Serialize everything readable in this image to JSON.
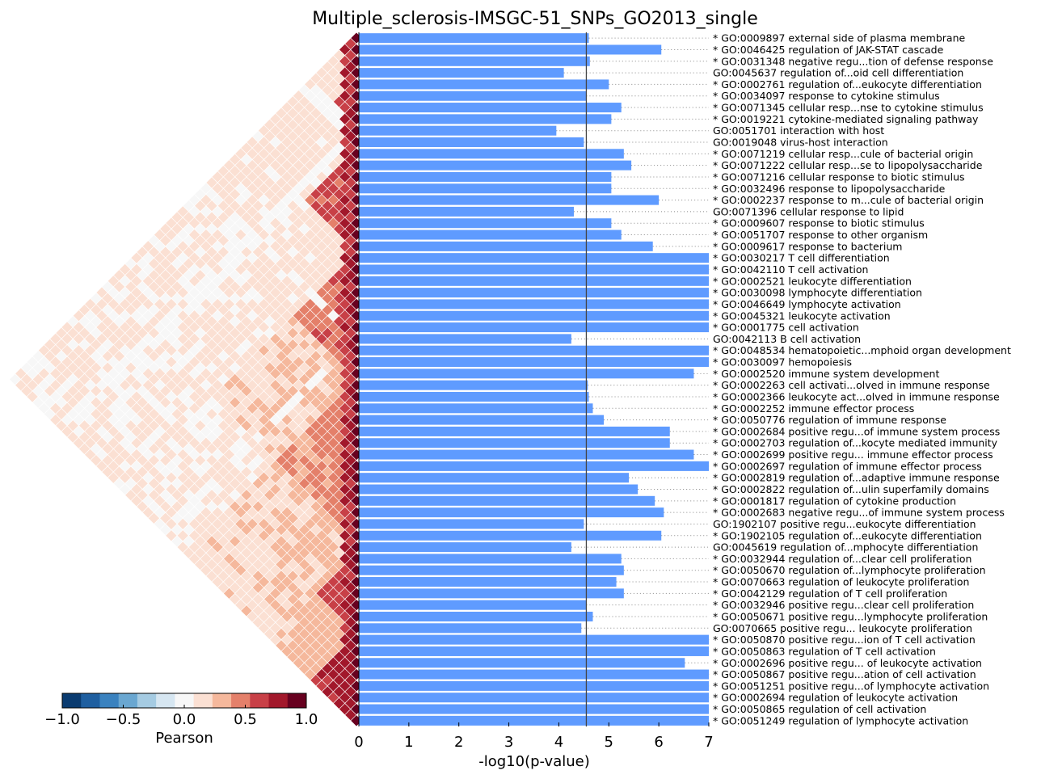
{
  "chart_data": {
    "type": "bar",
    "orientation": "horizontal",
    "title": "Multiple_sclerosis-IMSGC-51_SNPs_GO2013_single",
    "xlabel": "-log10(p-value)",
    "xlim": [
      0,
      7
    ],
    "xticks": [
      "0",
      "1",
      "2",
      "3",
      "4",
      "5",
      "6",
      "7"
    ],
    "threshold": 4.55,
    "bar_color": "#5f9bff",
    "categories": [
      "* GO:0009897 external side of plasma membrane",
      "* GO:0046425 regulation of JAK-STAT cascade",
      "* GO:0031348 negative regu...tion of defense response",
      "GO:0045637 regulation of...oid cell differentiation",
      "* GO:0002761 regulation of...eukocyte differentiation",
      "* GO:0034097 response to cytokine stimulus",
      "* GO:0071345 cellular resp...nse to cytokine stimulus",
      "* GO:0019221 cytokine-mediated signaling pathway",
      "GO:0051701 interaction with host",
      "GO:0019048 virus-host interaction",
      "* GO:0071219 cellular resp...cule of bacterial origin",
      "* GO:0071222 cellular resp...se to lipopolysaccharide",
      "* GO:0071216 cellular response to biotic stimulus",
      "* GO:0032496 response to lipopolysaccharide",
      "* GO:0002237 response to m...cule of bacterial origin",
      "GO:0071396 cellular response to lipid",
      "* GO:0009607 response to biotic stimulus",
      "* GO:0051707 response to other organism",
      "* GO:0009617 response to bacterium",
      "* GO:0030217 T cell differentiation",
      "* GO:0042110 T cell activation",
      "* GO:0002521 leukocyte differentiation",
      "* GO:0030098 lymphocyte differentiation",
      "* GO:0046649 lymphocyte activation",
      "* GO:0045321 leukocyte activation",
      "* GO:0001775 cell activation",
      "GO:0042113 B cell activation",
      "* GO:0048534 hematopoietic...mphoid organ development",
      "* GO:0030097 hemopoiesis",
      "* GO:0002520 immune system development",
      "* GO:0002263 cell activati...olved in immune response",
      "* GO:0002366 leukocyte act...olved in immune response",
      "* GO:0002252 immune effector process",
      "* GO:0050776 regulation of immune response",
      "* GO:0002684 positive regu...of immune system process",
      "* GO:0002703 regulation of...kocyte mediated immunity",
      "* GO:0002699 positive regu... immune effector process",
      "* GO:0002697 regulation of immune effector process",
      "* GO:0002819 regulation of...adaptive immune response",
      "* GO:0002822 regulation of...ulin superfamily domains",
      "* GO:0001817 regulation of cytokine production",
      "* GO:0002683 negative regu...of immune system process",
      "GO:1902107 positive regu...eukocyte differentiation",
      "* GO:1902105 regulation of...eukocyte differentiation",
      "GO:0045619 regulation of...mphocyte differentiation",
      "* GO:0032944 regulation of...clear cell proliferation",
      "* GO:0050670 regulation of...lymphocyte proliferation",
      "* GO:0070663 regulation of leukocyte proliferation",
      "* GO:0042129 regulation of T cell proliferation",
      "* GO:0032946 positive regu...clear cell proliferation",
      "* GO:0050671 positive regu...lymphocyte proliferation",
      "GO:0070665 positive regu... leukocyte proliferation",
      "* GO:0050870 positive regu...ion of T cell activation",
      "* GO:0050863 regulation of T cell activation",
      "* GO:0002696 positive regu... of leukocyte activation",
      "* GO:0050867 positive regu...ation of cell activation",
      "* GO:0051251 positive regu...of lymphocyte activation",
      "* GO:0002694 regulation of leukocyte activation",
      "* GO:0050865 regulation of cell activation",
      "* GO:0051249 regulation of lymphocyte activation"
    ],
    "values": [
      4.6,
      6.05,
      4.62,
      4.1,
      5.0,
      4.55,
      5.25,
      5.05,
      3.95,
      4.5,
      5.3,
      5.45,
      5.05,
      5.05,
      6.0,
      4.3,
      5.05,
      5.25,
      5.88,
      7.0,
      7.0,
      7.0,
      7.0,
      7.0,
      7.0,
      7.0,
      4.25,
      7.0,
      7.0,
      6.7,
      4.58,
      4.6,
      4.68,
      4.9,
      6.22,
      6.22,
      6.7,
      7.0,
      5.4,
      5.58,
      5.92,
      6.1,
      4.5,
      6.05,
      4.25,
      5.25,
      5.3,
      5.15,
      5.3,
      4.55,
      4.68,
      4.45,
      7.0,
      7.0,
      6.52,
      7.0,
      7.0,
      7.0,
      7.0,
      7.0
    ],
    "heatmap": {
      "type": "heatmap",
      "shape": "triangle",
      "colorbar_label": "Pearson",
      "colorbar_ticks": [
        "−1.0",
        "−0.5",
        "0.0",
        "0.5",
        "1.0"
      ],
      "vmin": -1.0,
      "vmax": 1.0,
      "colormap": [
        "#0a3b70",
        "#1f5fa0",
        "#3a82bf",
        "#6aa7d1",
        "#a5cbe2",
        "#d6e6f1",
        "#f7f7f7",
        "#fbe0d3",
        "#f5b89c",
        "#e4806a",
        "#c84047",
        "#a2182b",
        "#67001f"
      ]
    }
  }
}
